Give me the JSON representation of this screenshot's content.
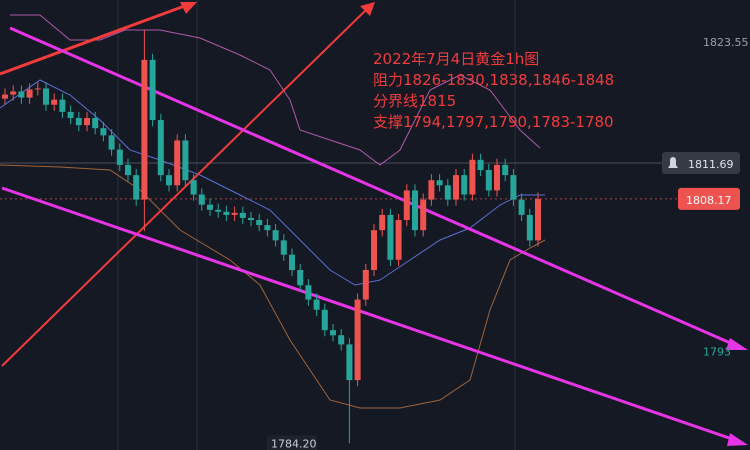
{
  "chart_data": {
    "type": "candlestick",
    "annotations": [
      "2022年7月4日黄金1h图",
      "阻力1826-1830,1838,1846-1848",
      "分界线1815",
      "支撑1794,1797,1790,1783-1780"
    ],
    "up_color": "#ef5350",
    "down_color": "#26a69a",
    "ylim": [
      1783.55,
      1827.67
    ],
    "open": [
      1818.0,
      1818.4,
      1818.7,
      1818.1,
      1818.9,
      1819.0,
      1817.4,
      1817.9,
      1816.7,
      1816.1,
      1815.4,
      1816.1,
      1815.1,
      1814.4,
      1813.0,
      1811.5,
      1810.5,
      1808.1,
      1821.8,
      1815.9,
      1810.5,
      1809.5,
      1813.9,
      1810.0,
      1808.6,
      1807.6,
      1807.1,
      1806.9,
      1806.6,
      1806.8,
      1806.3,
      1806.1,
      1805.6,
      1805.1,
      1804.1,
      1802.7,
      1801.2,
      1799.7,
      1798.3,
      1797.3,
      1795.3,
      1794.8,
      1793.9,
      1790.4,
      1798.3,
      1801.2,
      1805.1,
      1806.6,
      1802.2,
      1806.1,
      1809.0,
      1805.1,
      1808.1,
      1810.0,
      1809.5,
      1808.1,
      1810.5,
      1808.6,
      1812.0,
      1811.0,
      1809.0,
      1811.5,
      1810.5,
      1808.1,
      1806.6,
      1804.1
    ],
    "high": [
      1819.0,
      1819.3,
      1819.3,
      1819.5,
      1819.6,
      1819.6,
      1818.5,
      1818.5,
      1817.3,
      1816.7,
      1816.7,
      1816.7,
      1815.7,
      1815.0,
      1813.6,
      1812.1,
      1811.1,
      1824.7,
      1822.4,
      1816.5,
      1811.1,
      1814.5,
      1814.5,
      1810.6,
      1809.2,
      1808.2,
      1807.7,
      1807.5,
      1807.4,
      1807.4,
      1806.9,
      1806.7,
      1806.2,
      1805.7,
      1804.7,
      1803.3,
      1801.8,
      1800.3,
      1798.9,
      1797.9,
      1795.9,
      1795.4,
      1794.5,
      1798.9,
      1801.8,
      1805.7,
      1807.2,
      1807.2,
      1806.7,
      1809.6,
      1809.6,
      1808.7,
      1810.6,
      1810.6,
      1810.1,
      1811.1,
      1811.1,
      1812.6,
      1812.6,
      1811.6,
      1812.1,
      1812.1,
      1811.1,
      1808.7,
      1807.2,
      1808.8
    ],
    "low": [
      1817.4,
      1817.8,
      1817.5,
      1817.5,
      1818.3,
      1816.8,
      1816.8,
      1816.1,
      1815.5,
      1814.8,
      1814.8,
      1814.5,
      1813.8,
      1812.4,
      1810.9,
      1809.9,
      1807.5,
      1805.0,
      1815.3,
      1809.9,
      1808.9,
      1808.9,
      1809.4,
      1808.0,
      1807.0,
      1806.5,
      1806.3,
      1806.0,
      1806.0,
      1805.7,
      1805.5,
      1805.0,
      1804.5,
      1803.5,
      1802.1,
      1800.6,
      1799.1,
      1797.7,
      1796.7,
      1794.7,
      1794.2,
      1793.3,
      1784.2,
      1789.8,
      1797.7,
      1800.6,
      1804.5,
      1801.6,
      1801.6,
      1805.5,
      1804.5,
      1804.5,
      1807.5,
      1808.9,
      1807.5,
      1807.5,
      1808.0,
      1808.0,
      1810.4,
      1808.4,
      1808.4,
      1809.9,
      1807.5,
      1806.0,
      1803.5,
      1803.5
    ],
    "close": [
      1818.4,
      1818.7,
      1818.1,
      1818.9,
      1819.0,
      1817.4,
      1817.9,
      1816.7,
      1816.1,
      1815.4,
      1816.1,
      1815.1,
      1814.4,
      1813.0,
      1811.5,
      1810.5,
      1808.1,
      1821.8,
      1815.9,
      1810.5,
      1809.5,
      1813.9,
      1810.0,
      1808.6,
      1807.6,
      1807.1,
      1806.9,
      1806.6,
      1806.8,
      1806.3,
      1806.1,
      1805.6,
      1805.1,
      1804.1,
      1802.7,
      1801.2,
      1799.7,
      1798.3,
      1797.3,
      1795.3,
      1794.8,
      1793.9,
      1790.4,
      1798.3,
      1801.2,
      1805.1,
      1806.6,
      1802.2,
      1806.1,
      1809.0,
      1805.1,
      1808.1,
      1810.0,
      1809.5,
      1808.1,
      1810.5,
      1808.6,
      1812.0,
      1811.0,
      1809.0,
      1811.5,
      1810.5,
      1808.1,
      1806.6,
      1804.1,
      1808.17
    ],
    "price_labels": [
      1823.55,
      1811.69,
      1808.17,
      {
        "value": 1793.2,
        "label": "1793"
      },
      {
        "value": 1784.2,
        "label": "1784.20"
      }
    ]
  }
}
